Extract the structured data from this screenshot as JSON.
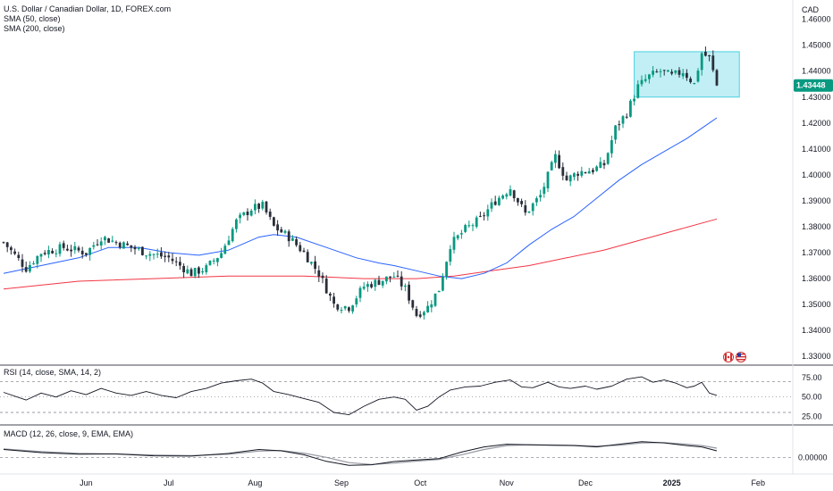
{
  "chart_data": {
    "type": "candlestick",
    "legend": {
      "title": "U.S. Dollar / Canadian Dollar, 1D, FOREX.com",
      "sma50": "SMA (50, close)",
      "sma200": "SMA (200, close)"
    },
    "currency": "CAD",
    "last_price": "1.43448",
    "ylim": [
      1.328,
      1.464
    ],
    "y_ticks": [
      "1.46000",
      "1.45000",
      "1.44000",
      "1.43000",
      "1.42000",
      "1.41000",
      "1.40000",
      "1.39000",
      "1.38000",
      "1.37000",
      "1.36000",
      "1.35000",
      "1.34000",
      "1.33000"
    ],
    "x_ticks": [
      {
        "label": "Jun",
        "day": 22,
        "bold": false
      },
      {
        "label": "Jul",
        "day": 44,
        "bold": false
      },
      {
        "label": "Aug",
        "day": 67,
        "bold": false
      },
      {
        "label": "Sep",
        "day": 90,
        "bold": false
      },
      {
        "label": "Oct",
        "day": 111,
        "bold": false
      },
      {
        "label": "Nov",
        "day": 134,
        "bold": false
      },
      {
        "label": "Dec",
        "day": 155,
        "bold": false
      },
      {
        "label": "2025",
        "day": 178,
        "bold": true
      },
      {
        "label": "Feb",
        "day": 201,
        "bold": false
      }
    ],
    "close_path": [
      [
        0,
        1.374
      ],
      [
        6,
        1.364
      ],
      [
        10,
        1.37
      ],
      [
        16,
        1.372
      ],
      [
        22,
        1.37
      ],
      [
        26,
        1.376
      ],
      [
        32,
        1.373
      ],
      [
        38,
        1.37
      ],
      [
        44,
        1.368
      ],
      [
        50,
        1.362
      ],
      [
        54,
        1.364
      ],
      [
        58,
        1.37
      ],
      [
        62,
        1.382
      ],
      [
        66,
        1.387
      ],
      [
        69,
        1.388
      ],
      [
        72,
        1.38
      ],
      [
        76,
        1.376
      ],
      [
        80,
        1.37
      ],
      [
        84,
        1.362
      ],
      [
        88,
        1.35
      ],
      [
        92,
        1.349
      ],
      [
        96,
        1.357
      ],
      [
        100,
        1.359
      ],
      [
        104,
        1.361
      ],
      [
        107,
        1.356
      ],
      [
        110,
        1.346
      ],
      [
        113,
        1.349
      ],
      [
        116,
        1.356
      ],
      [
        119,
        1.373
      ],
      [
        123,
        1.379
      ],
      [
        127,
        1.383
      ],
      [
        131,
        1.39
      ],
      [
        135,
        1.395
      ],
      [
        139,
        1.385
      ],
      [
        143,
        1.392
      ],
      [
        147,
        1.407
      ],
      [
        150,
        1.398
      ],
      [
        153,
        1.401
      ],
      [
        157,
        1.402
      ],
      [
        160,
        1.404
      ],
      [
        163,
        1.418
      ],
      [
        166,
        1.424
      ],
      [
        169,
        1.434
      ],
      [
        172,
        1.438
      ],
      [
        175,
        1.44
      ],
      [
        178,
        1.438
      ],
      [
        181,
        1.44
      ],
      [
        184,
        1.435
      ],
      [
        186,
        1.447
      ],
      [
        188,
        1.445
      ],
      [
        190,
        1.4345
      ]
    ],
    "sma50_points": [
      [
        0,
        1.362
      ],
      [
        10,
        1.365
      ],
      [
        20,
        1.368
      ],
      [
        28,
        1.372
      ],
      [
        36,
        1.372
      ],
      [
        44,
        1.37
      ],
      [
        52,
        1.369
      ],
      [
        60,
        1.371
      ],
      [
        68,
        1.376
      ],
      [
        72,
        1.377
      ],
      [
        78,
        1.376
      ],
      [
        86,
        1.372
      ],
      [
        94,
        1.368
      ],
      [
        100,
        1.366
      ],
      [
        104,
        1.365
      ],
      [
        110,
        1.363
      ],
      [
        116,
        1.361
      ],
      [
        122,
        1.36
      ],
      [
        128,
        1.362
      ],
      [
        134,
        1.366
      ],
      [
        140,
        1.373
      ],
      [
        146,
        1.379
      ],
      [
        152,
        1.384
      ],
      [
        158,
        1.391
      ],
      [
        164,
        1.398
      ],
      [
        170,
        1.404
      ],
      [
        176,
        1.409
      ],
      [
        182,
        1.414
      ],
      [
        188,
        1.42
      ],
      [
        190,
        1.422
      ]
    ],
    "sma200_points": [
      [
        0,
        1.356
      ],
      [
        20,
        1.359
      ],
      [
        40,
        1.36
      ],
      [
        60,
        1.361
      ],
      [
        80,
        1.361
      ],
      [
        96,
        1.36
      ],
      [
        110,
        1.36
      ],
      [
        120,
        1.361
      ],
      [
        130,
        1.363
      ],
      [
        140,
        1.365
      ],
      [
        150,
        1.368
      ],
      [
        160,
        1.371
      ],
      [
        170,
        1.375
      ],
      [
        180,
        1.379
      ],
      [
        190,
        1.383
      ]
    ],
    "box": {
      "day_start": 168,
      "day_end": 196,
      "top": 1.4475,
      "bottom": 1.43
    },
    "rsi": {
      "label": "RSI (14, close, SMA, 14, 2)",
      "ylim": [
        15,
        90
      ],
      "ticks": [
        "75.00",
        "50.00",
        "25.00"
      ],
      "tick_values": [
        75,
        50,
        25
      ],
      "upper": 70,
      "lower": 30,
      "points": [
        [
          0,
          56
        ],
        [
          6,
          46
        ],
        [
          10,
          55
        ],
        [
          14,
          50
        ],
        [
          18,
          58
        ],
        [
          22,
          53
        ],
        [
          26,
          61
        ],
        [
          30,
          55
        ],
        [
          34,
          52
        ],
        [
          38,
          57
        ],
        [
          42,
          52
        ],
        [
          46,
          49
        ],
        [
          50,
          57
        ],
        [
          54,
          61
        ],
        [
          58,
          68
        ],
        [
          62,
          71
        ],
        [
          66,
          73
        ],
        [
          69,
          68
        ],
        [
          72,
          57
        ],
        [
          76,
          53
        ],
        [
          80,
          48
        ],
        [
          84,
          43
        ],
        [
          88,
          30
        ],
        [
          92,
          27
        ],
        [
          96,
          38
        ],
        [
          100,
          47
        ],
        [
          104,
          50
        ],
        [
          107,
          47
        ],
        [
          110,
          33
        ],
        [
          113,
          38
        ],
        [
          116,
          50
        ],
        [
          119,
          59
        ],
        [
          123,
          63
        ],
        [
          127,
          64
        ],
        [
          131,
          69
        ],
        [
          135,
          72
        ],
        [
          138,
          63
        ],
        [
          141,
          62
        ],
        [
          145,
          69
        ],
        [
          148,
          63
        ],
        [
          151,
          61
        ],
        [
          155,
          64
        ],
        [
          158,
          60
        ],
        [
          162,
          64
        ],
        [
          166,
          73
        ],
        [
          170,
          76
        ],
        [
          173,
          69
        ],
        [
          176,
          72
        ],
        [
          179,
          68
        ],
        [
          182,
          62
        ],
        [
          184,
          64
        ],
        [
          186,
          69
        ],
        [
          188,
          55
        ],
        [
          190,
          52
        ]
      ]
    },
    "macd": {
      "label": "MACD (12, 26, close, 9, EMA, EMA)",
      "ylim": [
        -0.006,
        0.012
      ],
      "tick": "0.00000",
      "tick_value": 0,
      "macd_points": [
        [
          0,
          0.003
        ],
        [
          10,
          0.0018
        ],
        [
          20,
          0.0012
        ],
        [
          30,
          0.0013
        ],
        [
          40,
          0.0006
        ],
        [
          50,
          0.0005
        ],
        [
          60,
          0.0015
        ],
        [
          68,
          0.003
        ],
        [
          74,
          0.0025
        ],
        [
          80,
          0.001
        ],
        [
          86,
          -0.0015
        ],
        [
          92,
          -0.003
        ],
        [
          98,
          -0.0028
        ],
        [
          104,
          -0.0016
        ],
        [
          110,
          -0.001
        ],
        [
          116,
          -0.0005
        ],
        [
          122,
          0.002
        ],
        [
          128,
          0.004
        ],
        [
          134,
          0.005
        ],
        [
          140,
          0.0048
        ],
        [
          146,
          0.0046
        ],
        [
          152,
          0.0045
        ],
        [
          158,
          0.004
        ],
        [
          164,
          0.005
        ],
        [
          170,
          0.006
        ],
        [
          176,
          0.0055
        ],
        [
          182,
          0.0045
        ],
        [
          186,
          0.004
        ],
        [
          190,
          0.0025
        ]
      ],
      "signal_points": [
        [
          0,
          0.0032
        ],
        [
          10,
          0.0022
        ],
        [
          20,
          0.0015
        ],
        [
          30,
          0.0013
        ],
        [
          40,
          0.0009
        ],
        [
          50,
          0.0007
        ],
        [
          60,
          0.0012
        ],
        [
          68,
          0.0024
        ],
        [
          74,
          0.0026
        ],
        [
          80,
          0.0016
        ],
        [
          86,
          0.0
        ],
        [
          92,
          -0.002
        ],
        [
          98,
          -0.0027
        ],
        [
          104,
          -0.0022
        ],
        [
          110,
          -0.0014
        ],
        [
          116,
          -0.0008
        ],
        [
          122,
          0.001
        ],
        [
          128,
          0.003
        ],
        [
          134,
          0.0045
        ],
        [
          140,
          0.0048
        ],
        [
          146,
          0.0047
        ],
        [
          152,
          0.0046
        ],
        [
          158,
          0.0043
        ],
        [
          164,
          0.0046
        ],
        [
          170,
          0.0055
        ],
        [
          176,
          0.0056
        ],
        [
          182,
          0.005
        ],
        [
          186,
          0.0045
        ],
        [
          190,
          0.0035
        ]
      ]
    },
    "colors": {
      "up": "#089981",
      "down": "#2a2e39",
      "sma50": "#2962ff",
      "sma200": "#f23645",
      "box": "#b2ebf2",
      "box_border": "#4dd0e1",
      "price_label": "#089981",
      "grid_dashed": "#787b86"
    }
  }
}
